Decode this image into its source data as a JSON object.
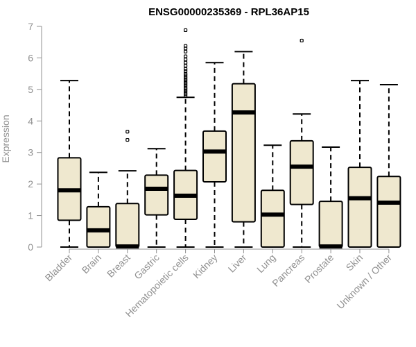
{
  "chart_data": {
    "type": "boxplot",
    "title": "ENSG00000235369 - RPL36AP15",
    "xlabel": "",
    "ylabel": "Expression",
    "ylim": [
      0,
      7
    ],
    "yticks": [
      "0",
      "1",
      "2",
      "3",
      "4",
      "5",
      "6",
      "7"
    ],
    "grid": false,
    "categories": [
      "Bladder",
      "Brain",
      "Breast",
      "Gastric",
      "Hematopoietic cells",
      "Kidney",
      "Liver",
      "Lung",
      "Pancreas",
      "Prostate",
      "Skin",
      "Unknown / Other"
    ],
    "boxes": [
      {
        "name": "Bladder",
        "whisker_low": 0,
        "q1": 0.85,
        "median": 1.8,
        "q3": 2.83,
        "whisker_high": 5.28,
        "outliers": []
      },
      {
        "name": "Brain",
        "whisker_low": 0,
        "q1": 0,
        "median": 0.53,
        "q3": 1.28,
        "whisker_high": 2.37,
        "outliers": []
      },
      {
        "name": "Breast",
        "whisker_low": 0,
        "q1": 0,
        "median": 0.02,
        "q3": 1.38,
        "whisker_high": 2.42,
        "outliers": [
          3.4,
          3.66
        ]
      },
      {
        "name": "Gastric",
        "whisker_low": 0,
        "q1": 1.02,
        "median": 1.85,
        "q3": 2.28,
        "whisker_high": 3.12,
        "outliers": []
      },
      {
        "name": "Hematopoietic cells",
        "whisker_low": 0,
        "q1": 0.88,
        "median": 1.63,
        "q3": 2.43,
        "whisker_high": 4.75,
        "outliers": [
          4.8,
          4.85,
          4.9,
          4.95,
          5.0,
          5.05,
          5.1,
          5.15,
          5.2,
          5.25,
          5.3,
          5.35,
          5.4,
          5.45,
          5.5,
          5.58,
          5.65,
          5.75,
          5.85,
          5.95,
          6.05,
          6.2,
          6.3,
          6.38,
          6.88
        ]
      },
      {
        "name": "Kidney",
        "whisker_low": 0,
        "q1": 2.07,
        "median": 3.03,
        "q3": 3.68,
        "whisker_high": 5.85,
        "outliers": []
      },
      {
        "name": "Liver",
        "whisker_low": 0,
        "q1": 0.8,
        "median": 4.27,
        "q3": 5.18,
        "whisker_high": 6.2,
        "outliers": []
      },
      {
        "name": "Lung",
        "whisker_low": 0,
        "q1": 0,
        "median": 1.03,
        "q3": 1.8,
        "whisker_high": 3.23,
        "outliers": []
      },
      {
        "name": "Pancreas",
        "whisker_low": 0,
        "q1": 1.35,
        "median": 2.55,
        "q3": 3.37,
        "whisker_high": 4.22,
        "outliers": [
          6.55
        ]
      },
      {
        "name": "Prostate",
        "whisker_low": 0,
        "q1": 0,
        "median": 0.02,
        "q3": 1.45,
        "whisker_high": 3.17,
        "outliers": []
      },
      {
        "name": "Skin",
        "whisker_low": 0,
        "q1": 0,
        "median": 1.55,
        "q3": 2.53,
        "whisker_high": 5.28,
        "outliers": []
      },
      {
        "name": "Unknown / Other",
        "whisker_low": 0,
        "q1": 0,
        "median": 1.41,
        "q3": 2.24,
        "whisker_high": 5.15,
        "outliers": []
      }
    ],
    "colors": {
      "box_fill": "#efe8cf",
      "box_stroke": "#000000",
      "axis": "#909090"
    }
  }
}
